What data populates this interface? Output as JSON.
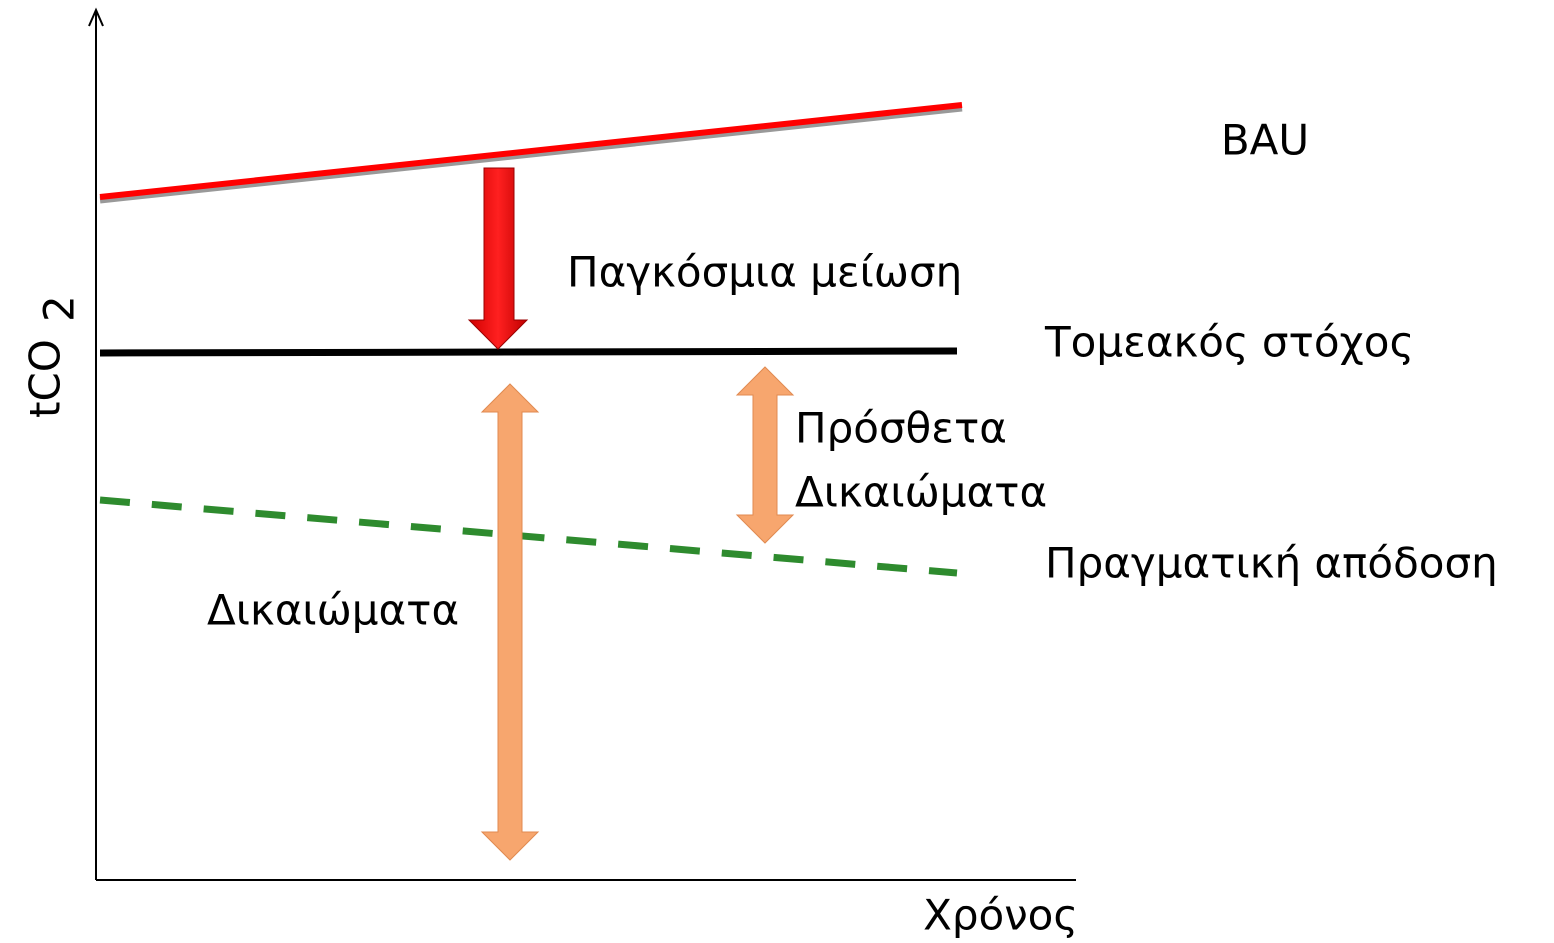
{
  "axes": {
    "y_label": {
      "text": "tCO",
      "subscript": "2"
    },
    "x_label": "Χρόνος"
  },
  "lines": [
    {
      "label": "BAU"
    },
    {
      "label": "Τομεακός στόχος"
    },
    {
      "label": "Πραγματική απόδοση"
    }
  ],
  "annotations": {
    "global_reduction": "Παγκόσμια μείωση",
    "additional_allowances": [
      "Πρόσθετα",
      "Δικαιώματα"
    ],
    "allowances": "Δικαιώματα"
  }
}
